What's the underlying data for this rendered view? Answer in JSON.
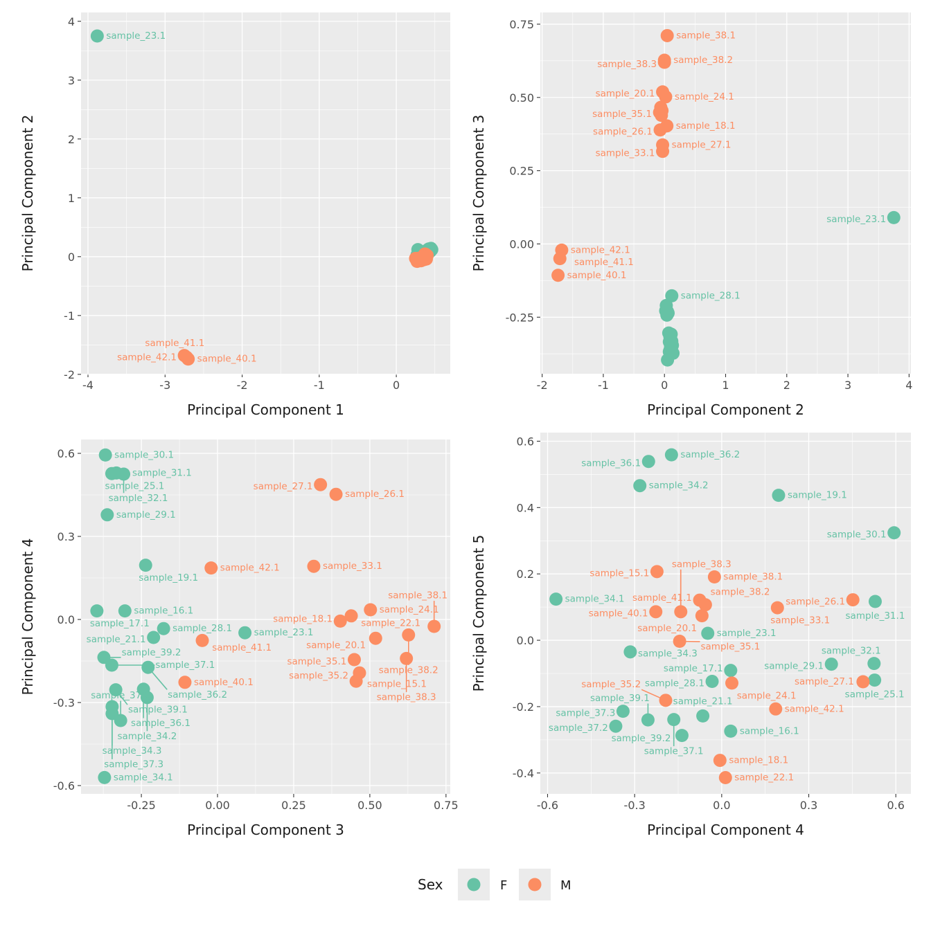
{
  "chart_data": {
    "type": "scatter",
    "colors": {
      "F": "#66c2a5",
      "M": "#fc8d62"
    },
    "legend": {
      "title": "Sex",
      "entries": [
        "F",
        "M"
      ],
      "placement": "bottom"
    },
    "grid": true,
    "samples": [
      {
        "name": "sample_23.1",
        "sex": "F",
        "pc1": -3.88,
        "pc2": 3.75,
        "pc3": 0.09,
        "pc4": -0.048,
        "pc5": 0.021
      },
      {
        "name": "sample_42.1",
        "sex": "M",
        "pc1": -2.75,
        "pc2": -1.68,
        "pc3": -0.021,
        "pc4": 0.186,
        "pc5": -0.207
      },
      {
        "name": "sample_40.1",
        "sex": "M",
        "pc1": -2.7,
        "pc2": -1.74,
        "pc3": -0.107,
        "pc4": -0.227,
        "pc5": 0.086
      },
      {
        "name": "sample_41.1",
        "sex": "M",
        "pc1": -2.72,
        "pc2": -1.71,
        "pc3": -0.05,
        "pc4": -0.076,
        "pc5": 0.121
      },
      {
        "name": "sample_30.1",
        "sex": "F",
        "pc1": 0.4,
        "pc2": 0.08,
        "pc3": -0.368,
        "pc4": 0.594,
        "pc5": 0.324
      },
      {
        "name": "sample_25.1",
        "sex": "F",
        "pc1": 0.42,
        "pc2": 0.1,
        "pc3": -0.347,
        "pc4": 0.527,
        "pc5": -0.12
      },
      {
        "name": "sample_31.1",
        "sex": "F",
        "pc1": 0.44,
        "pc2": 0.12,
        "pc3": -0.332,
        "pc4": 0.529,
        "pc5": 0.117
      },
      {
        "name": "sample_32.1",
        "sex": "F",
        "pc1": 0.43,
        "pc2": 0.11,
        "pc3": -0.308,
        "pc4": 0.525,
        "pc5": -0.07
      },
      {
        "name": "sample_29.1",
        "sex": "F",
        "pc1": 0.38,
        "pc2": 0.09,
        "pc3": -0.362,
        "pc4": 0.378,
        "pc5": -0.072
      },
      {
        "name": "sample_19.1",
        "sex": "F",
        "pc1": 0.35,
        "pc2": 0.06,
        "pc3": -0.236,
        "pc4": 0.196,
        "pc5": 0.437
      },
      {
        "name": "sample_17.1",
        "sex": "F",
        "pc1": 0.3,
        "pc2": 0.05,
        "pc3": -0.396,
        "pc4": 0.031,
        "pc5": -0.091
      },
      {
        "name": "sample_16.1",
        "sex": "F",
        "pc1": 0.33,
        "pc2": 0.07,
        "pc3": -0.304,
        "pc4": 0.031,
        "pc5": -0.274
      },
      {
        "name": "sample_28.1",
        "sex": "F",
        "pc1": 0.28,
        "pc2": 0.12,
        "pc3": -0.177,
        "pc4": -0.033,
        "pc5": -0.124
      },
      {
        "name": "sample_21.1",
        "sex": "F",
        "pc1": 0.27,
        "pc2": 0.03,
        "pc3": -0.21,
        "pc4": -0.065,
        "pc5": -0.228
      },
      {
        "name": "sample_39.2",
        "sex": "F",
        "pc1": 0.45,
        "pc2": 0.14,
        "pc3": -0.373,
        "pc4": -0.137,
        "pc5": -0.287
      },
      {
        "name": "sample_37.1",
        "sex": "F",
        "pc1": 0.41,
        "pc2": 0.1,
        "pc3": -0.347,
        "pc4": -0.165,
        "pc5": -0.239
      },
      {
        "name": "sample_36.2",
        "sex": "F",
        "pc1": 0.3,
        "pc2": 0.02,
        "pc3": -0.228,
        "pc4": -0.173,
        "pc5": 0.559
      },
      {
        "name": "sample_39.1",
        "sex": "F",
        "pc1": 0.39,
        "pc2": 0.08,
        "pc3": -0.334,
        "pc4": -0.254,
        "pc5": -0.24
      },
      {
        "name": "sample_36.1",
        "sex": "F",
        "pc1": 0.29,
        "pc2": 0.04,
        "pc3": -0.243,
        "pc4": -0.252,
        "pc5": 0.539
      },
      {
        "name": "sample_34.2",
        "sex": "F",
        "pc1": 0.31,
        "pc2": 0.05,
        "pc3": -0.231,
        "pc4": -0.282,
        "pc5": 0.466
      },
      {
        "name": "sample_34.3",
        "sex": "F",
        "pc1": 0.42,
        "pc2": 0.13,
        "pc3": -0.346,
        "pc4": -0.315,
        "pc5": -0.035
      },
      {
        "name": "sample_37.3",
        "sex": "F",
        "pc1": 0.4,
        "pc2": 0.11,
        "pc3": -0.346,
        "pc4": -0.34,
        "pc5": -0.214
      },
      {
        "name": "sample_37.2",
        "sex": "F",
        "pc1": 0.44,
        "pc2": 0.09,
        "pc3": -0.318,
        "pc4": -0.365,
        "pc5": -0.259
      },
      {
        "name": "sample_34.1",
        "sex": "F",
        "pc1": 0.46,
        "pc2": 0.12,
        "pc3": -0.371,
        "pc4": -0.571,
        "pc5": 0.124
      },
      {
        "name": "sample_27.1",
        "sex": "M",
        "pc1": 0.3,
        "pc2": -0.03,
        "pc3": 0.338,
        "pc4": 0.487,
        "pc5": -0.125
      },
      {
        "name": "sample_26.1",
        "sex": "M",
        "pc1": 0.32,
        "pc2": -0.07,
        "pc3": 0.389,
        "pc4": 0.452,
        "pc5": 0.122
      },
      {
        "name": "sample_33.1",
        "sex": "M",
        "pc1": 0.28,
        "pc2": -0.03,
        "pc3": 0.316,
        "pc4": 0.192,
        "pc5": 0.098
      },
      {
        "name": "sample_18.1",
        "sex": "M",
        "pc1": 0.38,
        "pc2": 0.04,
        "pc3": 0.403,
        "pc4": -0.006,
        "pc5": -0.362
      },
      {
        "name": "sample_22.1",
        "sex": "M",
        "pc1": 0.36,
        "pc2": -0.05,
        "pc3": 0.439,
        "pc4": 0.013,
        "pc5": -0.414
      },
      {
        "name": "sample_24.1",
        "sex": "M",
        "pc1": 0.4,
        "pc2": 0.02,
        "pc3": 0.502,
        "pc4": 0.035,
        "pc5": -0.129
      },
      {
        "name": "sample_38.1",
        "sex": "M",
        "pc1": 0.37,
        "pc2": 0.045,
        "pc3": 0.711,
        "pc4": -0.025,
        "pc5": 0.191
      },
      {
        "name": "sample_20.1",
        "sex": "M",
        "pc1": 0.25,
        "pc2": -0.03,
        "pc3": 0.519,
        "pc4": -0.068,
        "pc5": 0.074
      },
      {
        "name": "sample_38.2",
        "sex": "M",
        "pc1": 0.35,
        "pc2": 0.0,
        "pc3": 0.627,
        "pc4": -0.056,
        "pc5": 0.107
      },
      {
        "name": "sample_35.1",
        "sex": "M",
        "pc1": 0.27,
        "pc2": -0.08,
        "pc3": 0.449,
        "pc4": -0.145,
        "pc5": -0.003
      },
      {
        "name": "sample_35.2",
        "sex": "M",
        "pc1": 0.33,
        "pc2": -0.06,
        "pc3": 0.466,
        "pc4": -0.193,
        "pc5": -0.181
      },
      {
        "name": "sample_15.1",
        "sex": "M",
        "pc1": 0.39,
        "pc2": -0.04,
        "pc3": 0.455,
        "pc4": -0.223,
        "pc5": 0.207
      },
      {
        "name": "sample_38.3",
        "sex": "M",
        "pc1": 0.34,
        "pc2": 0.0,
        "pc3": 0.62,
        "pc4": -0.141,
        "pc5": 0.086
      }
    ],
    "panels": [
      {
        "x": "pc1",
        "y": "pc2",
        "xlabel": "Principal Component 1",
        "ylabel": "Principal Component 2",
        "xlim": [
          -4.09,
          0.7
        ],
        "ylim": [
          -1.99,
          4.15
        ],
        "xticks": [
          -4,
          -3,
          -2,
          -1,
          0
        ],
        "xtick_labels": [
          "-4",
          "-3",
          "-2",
          "-1",
          "0"
        ],
        "yticks": [
          -2,
          -1,
          0,
          1,
          2,
          3,
          4
        ],
        "ytick_labels": [
          "-2",
          "-1",
          "0",
          "1",
          "2",
          "3",
          "4"
        ],
        "labeled": [
          "sample_23.1",
          "sample_42.1",
          "sample_40.1",
          "sample_41.1"
        ]
      },
      {
        "x": "pc2",
        "y": "pc3",
        "xlabel": "Principal Component 2",
        "ylabel": "Principal Component 3",
        "xlim": [
          -2.03,
          4.03
        ],
        "ylim": [
          -0.443,
          0.79
        ],
        "xticks": [
          -2,
          -1,
          0,
          1,
          2,
          3,
          4
        ],
        "xtick_labels": [
          "-2",
          "-1",
          "0",
          "1",
          "2",
          "3",
          "4"
        ],
        "yticks": [
          -0.25,
          0,
          0.25,
          0.5,
          0.75
        ],
        "ytick_labels": [
          "-0.25",
          "0.00",
          "0.25",
          "0.50",
          "0.75"
        ],
        "labeled": [
          "sample_38.1",
          "sample_38.2",
          "sample_38.3",
          "sample_20.1",
          "sample_24.1",
          "sample_35.1",
          "sample_18.1",
          "sample_26.1",
          "sample_27.1",
          "sample_33.1",
          "sample_23.1",
          "sample_42.1",
          "sample_41.1",
          "sample_40.1",
          "sample_28.1"
        ]
      },
      {
        "x": "pc3",
        "y": "pc4",
        "xlabel": "Principal Component 3",
        "ylabel": "Principal Component 4",
        "xlim": [
          -0.448,
          0.764
        ],
        "ylim": [
          -0.63,
          0.65
        ],
        "xticks": [
          -0.25,
          0,
          0.25,
          0.5,
          0.75
        ],
        "xtick_labels": [
          "-0.25",
          "0.00",
          "0.25",
          "0.50",
          "0.75"
        ],
        "yticks": [
          -0.6,
          -0.3,
          0,
          0.3,
          0.6
        ],
        "ytick_labels": [
          "-0.6",
          "-0.3",
          "0.0",
          "0.3",
          "0.6"
        ],
        "labeled": "all"
      },
      {
        "x": "pc4",
        "y": "pc5",
        "xlabel": "Principal Component 4",
        "ylabel": "Principal Component 5",
        "xlim": [
          -0.625,
          0.652
        ],
        "ylim": [
          -0.463,
          0.626
        ],
        "xticks": [
          -0.6,
          -0.3,
          0,
          0.3,
          0.6
        ],
        "xtick_labels": [
          "-0.6",
          "-0.3",
          "0.0",
          "0.3",
          "0.6"
        ],
        "yticks": [
          -0.4,
          -0.2,
          0,
          0.2,
          0.4,
          0.6
        ],
        "ytick_labels": [
          "-0.4",
          "-0.2",
          "0.0",
          "0.2",
          "0.4",
          "0.6"
        ],
        "labeled": "all"
      }
    ]
  }
}
